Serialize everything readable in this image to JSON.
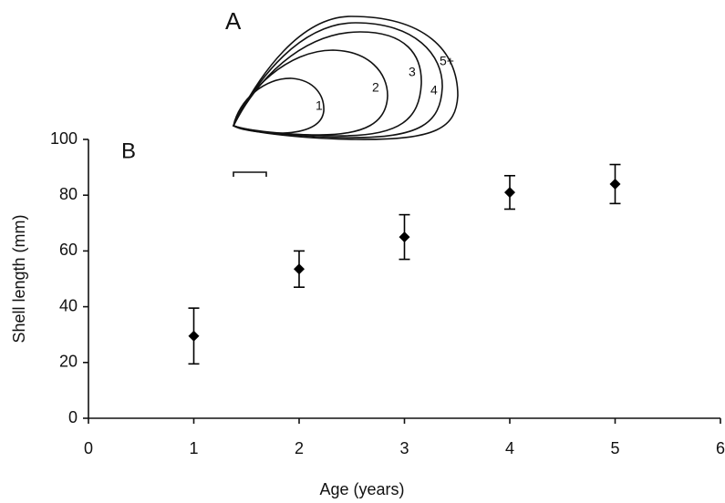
{
  "chart_data": {
    "type": "scatter",
    "x_label": "Age (years)",
    "y_label": "Shell length (mm)",
    "panel_labels": [
      "A",
      "B"
    ],
    "ring_labels": [
      "1",
      "2",
      "3",
      "4",
      "5+"
    ],
    "x": [
      1,
      2,
      3,
      4,
      5
    ],
    "values": [
      29.5,
      53.5,
      65,
      81,
      84
    ],
    "errors": [
      10,
      6.5,
      8,
      6,
      7
    ],
    "color": "#000000",
    "xlim": [
      0,
      6
    ],
    "xticks": [
      0,
      1,
      2,
      3,
      4,
      5,
      6
    ],
    "ylim": [
      0,
      100
    ],
    "yticks": [
      0,
      20,
      40,
      60,
      80,
      100
    ],
    "grid": false
  }
}
